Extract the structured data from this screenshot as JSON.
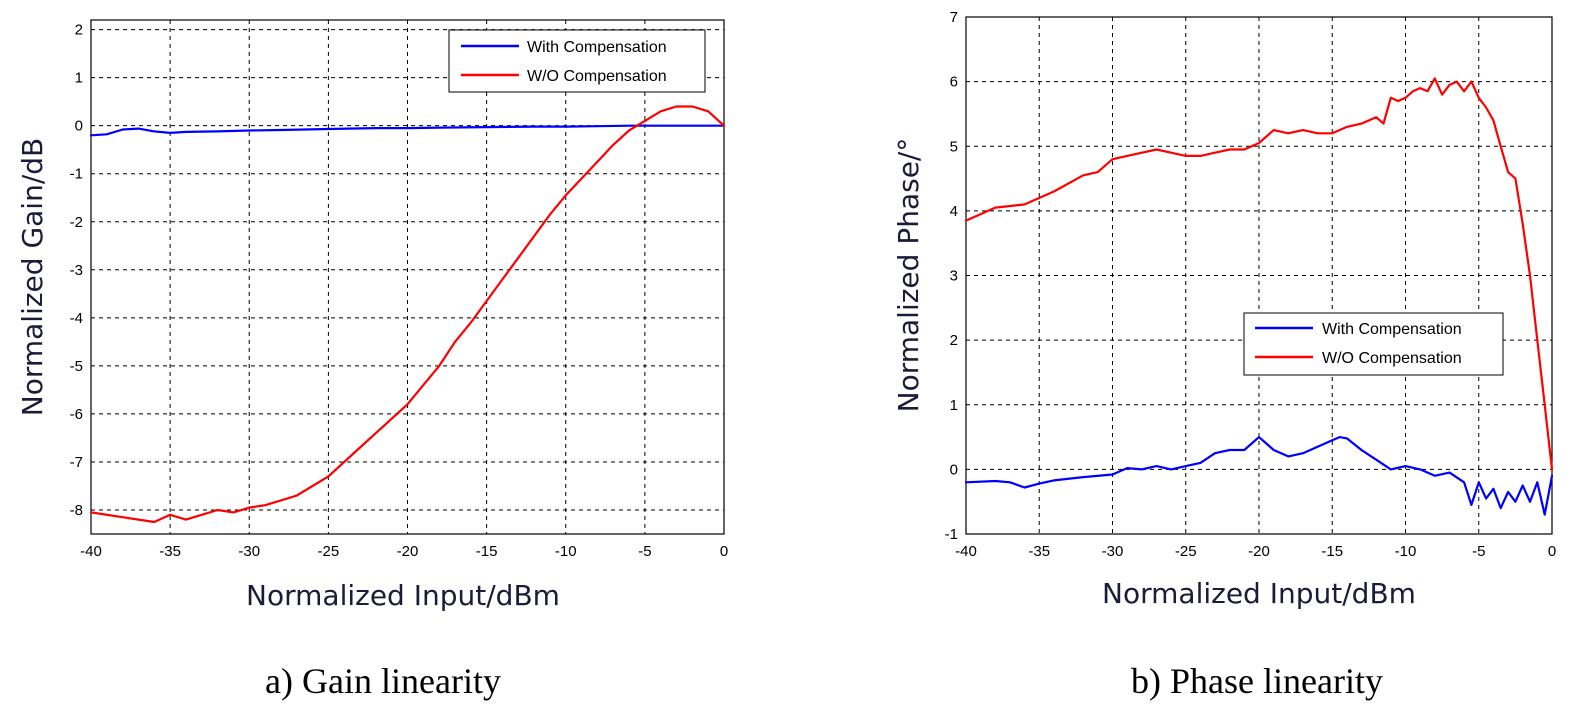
{
  "chart_data": [
    {
      "type": "line",
      "caption": "a) Gain linearity",
      "xlabel": "Normalized Input/dBm",
      "ylabel": "Normalized Gain/dB",
      "xlim": [
        -40,
        0
      ],
      "ylim": [
        -8.5,
        2.2
      ],
      "xticks": [
        -40,
        -35,
        -30,
        -25,
        -20,
        -15,
        -10,
        -5,
        0
      ],
      "yticks": [
        2,
        1,
        0,
        -1,
        -2,
        -3,
        -4,
        -5,
        -6,
        -7,
        -8
      ],
      "grid": true,
      "legend_position": "top-right",
      "series": [
        {
          "name": "With Compensation",
          "color": "#0000ff",
          "x": [
            -40,
            -39,
            -38,
            -37,
            -36,
            -35,
            -34,
            -32,
            -30,
            -28,
            -25,
            -22,
            -20,
            -18,
            -15,
            -12,
            -10,
            -8,
            -6,
            -4,
            -2,
            0
          ],
          "y": [
            -0.2,
            -0.18,
            -0.08,
            -0.06,
            -0.12,
            -0.15,
            -0.13,
            -0.12,
            -0.1,
            -0.09,
            -0.07,
            -0.05,
            -0.05,
            -0.04,
            -0.03,
            -0.02,
            -0.02,
            -0.01,
            0,
            0,
            0,
            0
          ]
        },
        {
          "name": "W/O Compensation",
          "color": "#ff0000",
          "x": [
            -40,
            -38,
            -37,
            -36,
            -35,
            -34,
            -33,
            -32,
            -31,
            -30,
            -29,
            -28,
            -27,
            -26,
            -25,
            -24,
            -23,
            -22,
            -21,
            -20,
            -19,
            -18,
            -17,
            -16,
            -15,
            -14,
            -13,
            -12,
            -11,
            -10,
            -9,
            -8,
            -7,
            -6,
            -5,
            -4,
            -3,
            -2,
            -1,
            0
          ],
          "y": [
            -8.05,
            -8.15,
            -8.2,
            -8.25,
            -8.1,
            -8.2,
            -8.1,
            -8.0,
            -8.05,
            -7.95,
            -7.9,
            -7.8,
            -7.7,
            -7.5,
            -7.3,
            -7.0,
            -6.7,
            -6.4,
            -6.1,
            -5.8,
            -5.4,
            -5.0,
            -4.5,
            -4.1,
            -3.65,
            -3.2,
            -2.75,
            -2.3,
            -1.85,
            -1.45,
            -1.1,
            -0.75,
            -0.4,
            -0.1,
            0.1,
            0.3,
            0.4,
            0.4,
            0.3,
            0.0
          ]
        }
      ]
    },
    {
      "type": "line",
      "caption": "b) Phase linearity",
      "xlabel": "Normalized Input/dBm",
      "ylabel": "Normalized Phase/°",
      "xlim": [
        -40,
        0
      ],
      "ylim": [
        -1,
        7
      ],
      "xticks": [
        -40,
        -35,
        -30,
        -25,
        -20,
        -15,
        -10,
        -5,
        0
      ],
      "yticks": [
        7,
        6,
        5,
        4,
        3,
        2,
        1,
        0,
        -1
      ],
      "grid": true,
      "legend_position": "center-right",
      "series": [
        {
          "name": "With Compensation",
          "color": "#0000ff",
          "x": [
            -40,
            -38,
            -37,
            -36,
            -35,
            -34,
            -32,
            -30,
            -29,
            -28,
            -27,
            -26,
            -25,
            -24,
            -23,
            -22,
            -21,
            -20,
            -19.5,
            -19,
            -18,
            -17,
            -16,
            -15,
            -14.5,
            -14,
            -13,
            -12,
            -11,
            -10,
            -9,
            -8,
            -7,
            -6,
            -5.5,
            -5,
            -4.5,
            -4,
            -3.5,
            -3,
            -2.5,
            -2,
            -1.5,
            -1,
            -0.5,
            0
          ],
          "y": [
            -0.2,
            -0.18,
            -0.2,
            -0.28,
            -0.22,
            -0.17,
            -0.12,
            -0.08,
            0.02,
            0.0,
            0.05,
            0.0,
            0.05,
            0.1,
            0.25,
            0.3,
            0.3,
            0.5,
            0.4,
            0.3,
            0.2,
            0.25,
            0.35,
            0.45,
            0.5,
            0.48,
            0.3,
            0.15,
            0.0,
            0.05,
            0.0,
            -0.1,
            -0.05,
            -0.2,
            -0.55,
            -0.2,
            -0.45,
            -0.3,
            -0.6,
            -0.35,
            -0.5,
            -0.25,
            -0.5,
            -0.2,
            -0.7,
            -0.1
          ]
        },
        {
          "name": "W/O Compensation",
          "color": "#ff0000",
          "x": [
            -40,
            -38,
            -36,
            -34,
            -32,
            -31,
            -30,
            -29,
            -28,
            -27,
            -26,
            -25,
            -24,
            -23,
            -22,
            -21,
            -20,
            -19,
            -18,
            -17,
            -16,
            -15,
            -14,
            -13,
            -12,
            -11.5,
            -11,
            -10.5,
            -10,
            -9.5,
            -9,
            -8.5,
            -8,
            -7.5,
            -7,
            -6.5,
            -6,
            -5.5,
            -5,
            -4.5,
            -4,
            -3.5,
            -3,
            -2.5,
            -2,
            -1.5,
            -1,
            -0.5,
            0
          ],
          "y": [
            3.85,
            4.05,
            4.1,
            4.3,
            4.55,
            4.6,
            4.8,
            4.85,
            4.9,
            4.95,
            4.9,
            4.85,
            4.85,
            4.9,
            4.95,
            4.95,
            5.05,
            5.25,
            5.2,
            5.25,
            5.2,
            5.2,
            5.3,
            5.35,
            5.45,
            5.35,
            5.75,
            5.7,
            5.75,
            5.85,
            5.9,
            5.85,
            6.05,
            5.8,
            5.95,
            6.0,
            5.85,
            6.0,
            5.75,
            5.6,
            5.4,
            5.0,
            4.6,
            4.5,
            3.8,
            3.0,
            2.0,
            1.0,
            0.0
          ]
        }
      ]
    }
  ]
}
